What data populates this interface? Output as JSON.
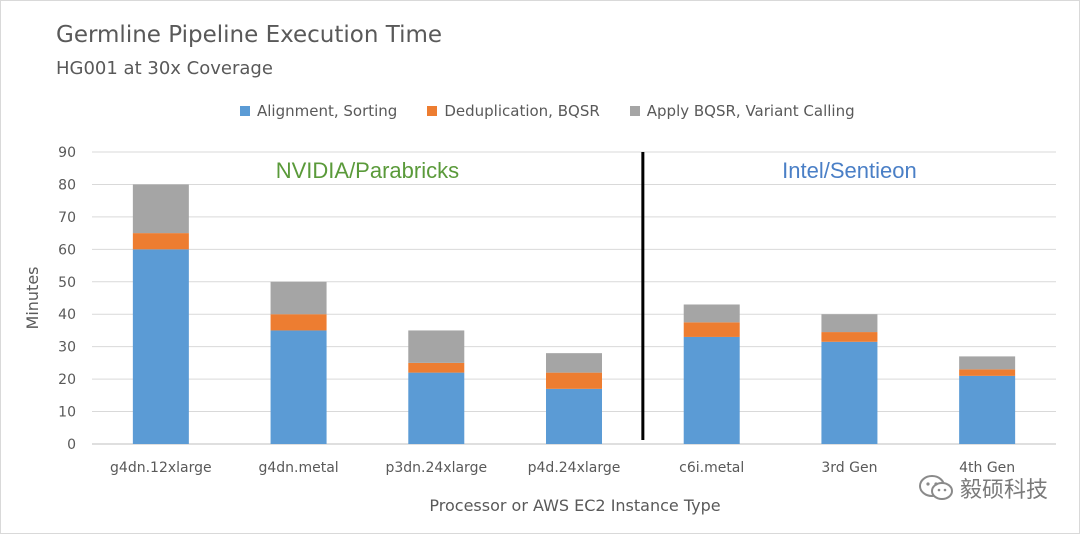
{
  "chart_data": {
    "type": "bar",
    "stacked": true,
    "title": "Germline Pipeline Execution Time",
    "subtitle": "HG001 at 30x Coverage",
    "xlabel": "Processor or AWS EC2 Instance Type",
    "ylabel": "Minutes",
    "ylim": [
      0,
      90
    ],
    "yticks": [
      0,
      10,
      20,
      30,
      40,
      50,
      60,
      70,
      80,
      90
    ],
    "grid": true,
    "legend_position": "top",
    "categories": [
      "g4dn.12xlarge",
      "g4dn.metal",
      "p3dn.24xlarge",
      "p4d.24xlarge",
      "c6i.metal",
      "3rd Gen",
      "4th Gen"
    ],
    "series": [
      {
        "name": "Alignment, Sorting",
        "color": "#5b9bd5",
        "values": [
          60,
          35,
          22,
          17,
          33,
          31.5,
          21
        ]
      },
      {
        "name": "Deduplication, BQSR",
        "color": "#ed7d31",
        "values": [
          5,
          5,
          3,
          5,
          4.5,
          3,
          2
        ]
      },
      {
        "name": "Apply BQSR, Variant Calling",
        "color": "#a5a5a5",
        "values": [
          15,
          10,
          10,
          6,
          5.5,
          5.5,
          4
        ]
      }
    ],
    "group_labels": [
      {
        "text": "NVIDIA/Parabricks",
        "color": "#5a9a3a",
        "categories": [
          0,
          3
        ]
      },
      {
        "text": "Intel/Sentieon",
        "color": "#4a7fc6",
        "categories": [
          4,
          6
        ]
      }
    ],
    "divider_after_category": 3
  },
  "watermark": {
    "text": "毅硕科技",
    "icon": "wechat-icon"
  }
}
